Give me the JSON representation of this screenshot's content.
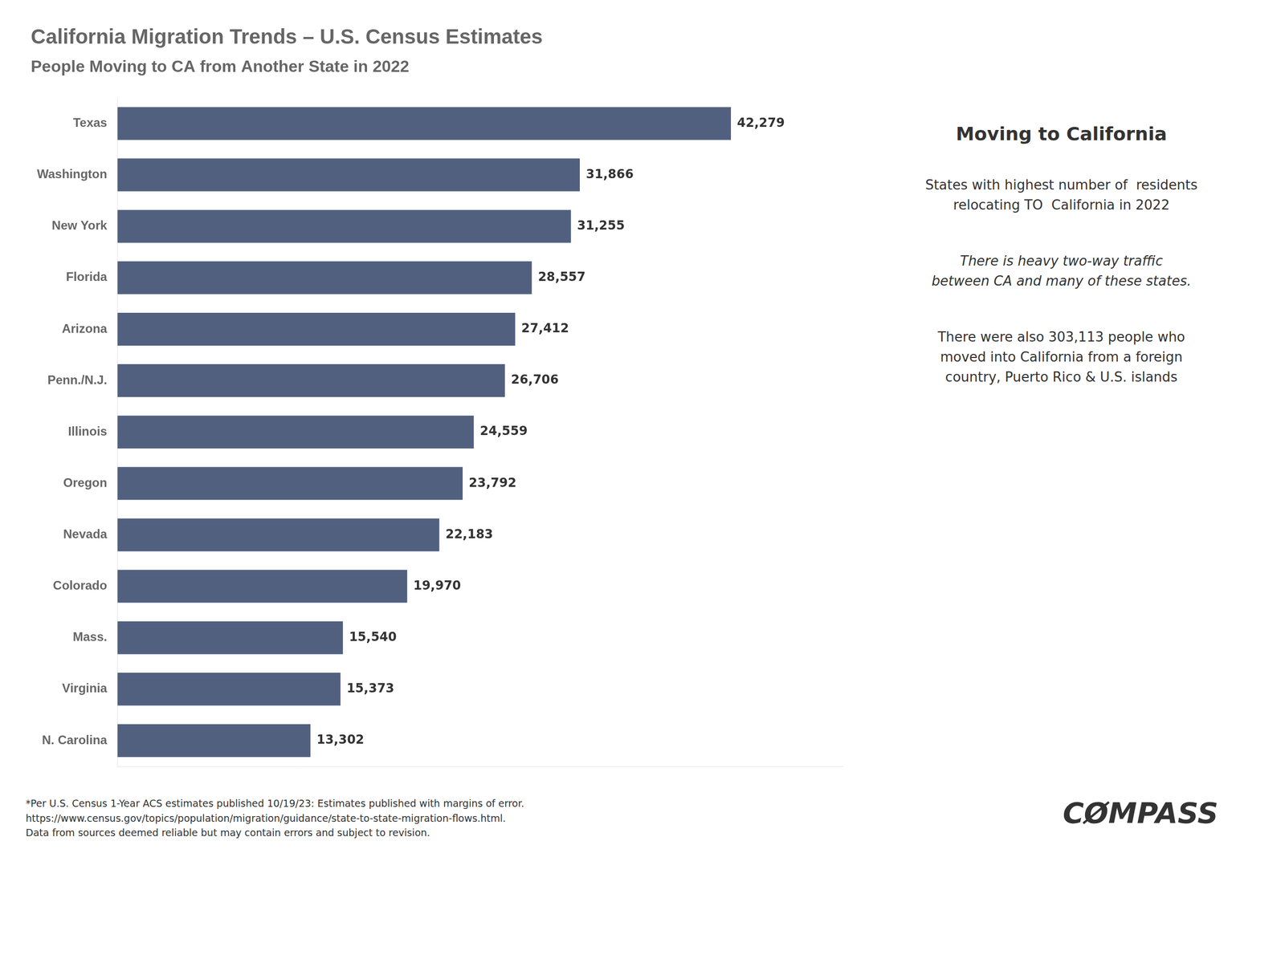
{
  "chart_data": {
    "type": "bar",
    "orientation": "horizontal",
    "title": "California Migration Trends – U.S. Census Estimates",
    "subtitle": "People Moving to CA from Another State in 2022",
    "categories": [
      "Texas",
      "Washington",
      "New York",
      "Florida",
      "Arizona",
      "Penn./N.J.",
      "Illinois",
      "Oregon",
      "Nevada",
      "Colorado",
      "Mass.",
      "Virginia",
      "N. Carolina"
    ],
    "values": [
      42279,
      31866,
      31255,
      28557,
      27412,
      26706,
      24559,
      23792,
      22183,
      19970,
      15540,
      15373,
      13302
    ],
    "value_labels": [
      "42,279",
      "31,866",
      "31,255",
      "28,557",
      "27,412",
      "26,706",
      "24,559",
      "23,792",
      "22,183",
      "19,970",
      "15,540",
      "15,373",
      "13,302"
    ],
    "data_labels": true,
    "color": "#526080",
    "xlim": [
      0,
      50000
    ],
    "grid": false,
    "tick_labels": "y",
    "annotations": [
      "Moving to California",
      "States with highest number of  residents\nrelocating TO  California in 2022",
      "There is heavy two-way traffic\nbetween CA and many of these states.",
      "There were also 303,113 people who\nmoved into California from a foreign\ncountry, Puerto Rico & U.S. islands",
      "*Per U.S. Census 1-Year ACS estimates published 10/19/23: Estimates published with margins of error.\nhttps://www.census.gov/topics/population/migration/guidance/state-to-state-migration-flows.html.\nData from sources deemed reliable but may contain errors and subject to revision.",
      "CØMPASS"
    ]
  }
}
